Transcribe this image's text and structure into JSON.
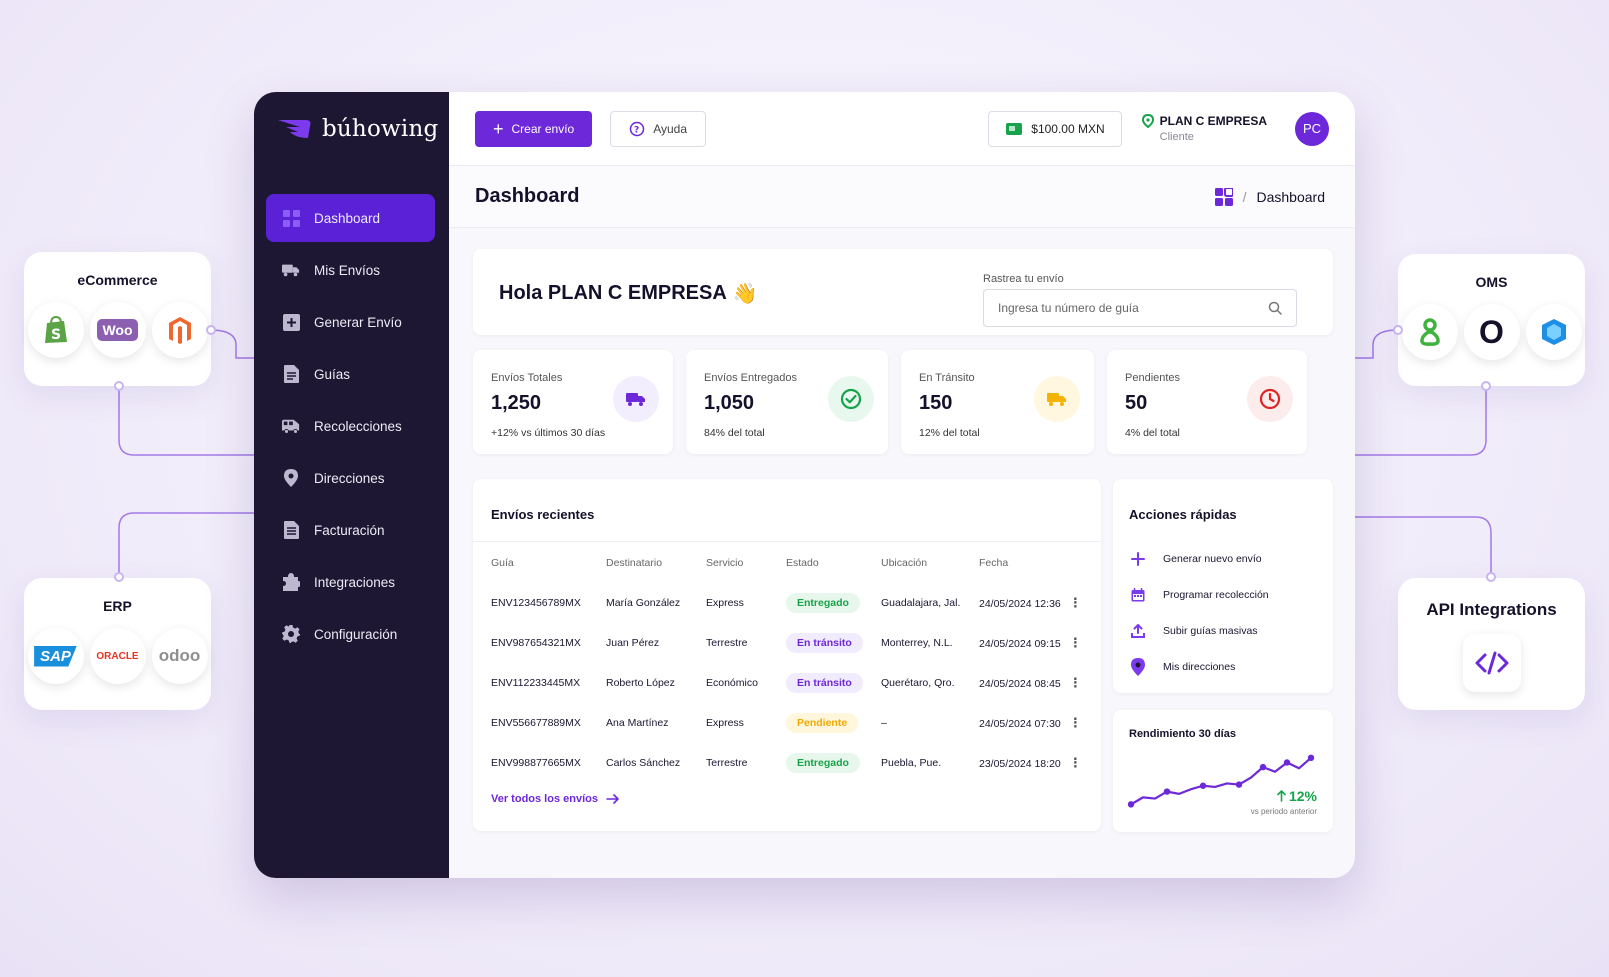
{
  "integrations": {
    "ecommerce": {
      "title": "eCommerce",
      "logos": [
        "shopify-icon",
        "woo-icon",
        "magento-icon"
      ],
      "woo_text": "Woo"
    },
    "erp": {
      "title": "ERP",
      "logos": [
        "sap-icon",
        "oracle-icon",
        "odoo-icon"
      ],
      "sap_text": "SAP",
      "oracle_text": "ORACLE",
      "odoo_text": "odoo"
    },
    "oms": {
      "title": "OMS",
      "logos": [
        "oms-green-icon",
        "oms-zero-icon",
        "oms-cube-icon"
      ],
      "zero_text": "O"
    },
    "api": {
      "title": "API Integrations",
      "icon": "code-icon"
    }
  },
  "brand": {
    "name": "búhowing"
  },
  "sidebar": {
    "items": [
      {
        "label": "Dashboard",
        "icon": "grid-icon",
        "active": true
      },
      {
        "label": "Mis Envíos",
        "icon": "truck-icon"
      },
      {
        "label": "Generar Envío",
        "icon": "plus-square-icon"
      },
      {
        "label": "Guías",
        "icon": "document-icon"
      },
      {
        "label": "Recolecciones",
        "icon": "van-icon"
      },
      {
        "label": "Direcciones",
        "icon": "pin-icon"
      },
      {
        "label": "Facturación",
        "icon": "invoice-icon"
      },
      {
        "label": "Integraciones",
        "icon": "puzzle-icon"
      },
      {
        "label": "Configuración",
        "icon": "gear-icon"
      }
    ]
  },
  "topbar": {
    "create_label": "Crear envío",
    "help_label": "Ayuda",
    "balance": "$100.00 MXN",
    "plan_name": "PLAN C EMPRESA",
    "plan_role": "Cliente",
    "avatar": "PC"
  },
  "page": {
    "title": "Dashboard",
    "breadcrumb": "Dashboard"
  },
  "welcome": {
    "greeting": "Hola PLAN C EMPRESA",
    "emoji": "👋",
    "track_label": "Rastrea tu envío",
    "track_placeholder": "Ingresa tu número de guía"
  },
  "stats": [
    {
      "label": "Envíos Totales",
      "value": "1,250",
      "sub": "+12% vs últimos 30 días",
      "icon": "truck-icon",
      "color": "#6d28d9",
      "bg": "#f3eefe"
    },
    {
      "label": "Envíos Entregados",
      "value": "1,050",
      "sub": "84% del total",
      "icon": "check-circle-icon",
      "color": "#16a34a",
      "bg": "#e9f8ee"
    },
    {
      "label": "En Tránsito",
      "value": "150",
      "sub": "12% del total",
      "icon": "truck-icon",
      "color": "#f5b301",
      "bg": "#fff7e0"
    },
    {
      "label": "Pendientes",
      "value": "50",
      "sub": "4% del total",
      "icon": "clock-icon",
      "color": "#dc2626",
      "bg": "#fdecec"
    }
  ],
  "recent": {
    "title": "Envíos recientes",
    "columns": [
      "Guía",
      "Destinatario",
      "Servicio",
      "Estado",
      "Ubicación",
      "Fecha"
    ],
    "rows": [
      {
        "guia": "ENV123456789MX",
        "dest": "María González",
        "servicio": "Express",
        "estado": "Entregado",
        "estado_type": "ok",
        "ubicacion": "Guadalajara, Jal.",
        "fecha": "24/05/2024 12:36"
      },
      {
        "guia": "ENV987654321MX",
        "dest": "Juan Pérez",
        "servicio": "Terrestre",
        "estado": "En tránsito",
        "estado_type": "transit",
        "ubicacion": "Monterrey, N.L.",
        "fecha": "24/05/2024 09:15"
      },
      {
        "guia": "ENV112233445MX",
        "dest": "Roberto López",
        "servicio": "Económico",
        "estado": "En tránsito",
        "estado_type": "transit",
        "ubicacion": "Querétaro, Qro.",
        "fecha": "24/05/2024 08:45"
      },
      {
        "guia": "ENV556677889MX",
        "dest": "Ana Martínez",
        "servicio": "Express",
        "estado": "Pendiente",
        "estado_type": "pending",
        "ubicacion": "–",
        "fecha": "24/05/2024 07:30"
      },
      {
        "guia": "ENV998877665MX",
        "dest": "Carlos Sánchez",
        "servicio": "Terrestre",
        "estado": "Entregado",
        "estado_type": "ok",
        "ubicacion": "Puebla, Pue.",
        "fecha": "23/05/2024 18:20"
      }
    ],
    "see_all": "Ver todos los envíos"
  },
  "quick_actions": {
    "title": "Acciones rápidas",
    "items": [
      {
        "label": "Generar nuevo envío",
        "icon": "plus-icon"
      },
      {
        "label": "Programar recolección",
        "icon": "calendar-icon"
      },
      {
        "label": "Subir guías masivas",
        "icon": "upload-icon"
      },
      {
        "label": "Mis direcciones",
        "icon": "pin-icon"
      }
    ]
  },
  "performance": {
    "title": "Rendimiento 30 días",
    "change": "12%",
    "change_sub": "vs periodo anterior"
  },
  "chart_data": {
    "type": "line",
    "values": [
      2,
      3.2,
      3.0,
      4.2,
      3.8,
      4.6,
      5.2,
      5.0,
      5.6,
      5.4,
      6.6,
      8.4,
      7.6,
      9.2,
      8.2,
      10
    ],
    "series": [
      {
        "values": [
          2,
          3.2,
          3.0,
          4.2,
          3.8,
          4.6,
          5.2,
          5.0,
          5.6,
          5.4,
          6.6,
          8.4,
          7.6,
          9.2,
          8.2,
          10
        ]
      }
    ],
    "markers_at": [
      0,
      3,
      6,
      9,
      11,
      13,
      15
    ],
    "ylim": [
      0,
      11
    ],
    "grid": false
  }
}
